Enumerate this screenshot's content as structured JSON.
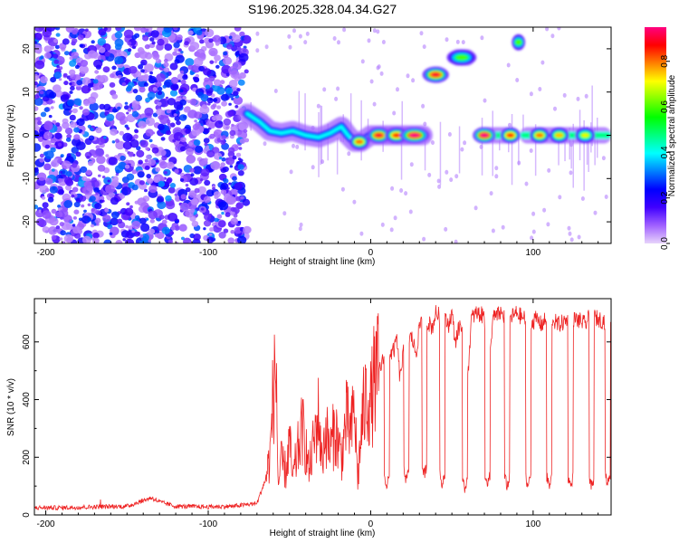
{
  "chart_data": [
    {
      "type": "heatmap",
      "title": "S196.2025.328.04.34.G27",
      "xlabel": "Height of straight line (km)",
      "ylabel": "Frequency (Hz)",
      "xlim": [
        -207,
        148
      ],
      "ylim": [
        -25,
        25
      ],
      "xticks": [
        -200,
        -100,
        0,
        100
      ],
      "yticks": [
        -20,
        -10,
        0,
        10,
        20
      ],
      "colorbar": {
        "label": "Normalized spectral amplitude",
        "range": [
          0.0,
          0.95
        ],
        "ticks": [
          0.0,
          0.2,
          0.4,
          0.6,
          0.8
        ],
        "tick_labels": [
          "0.0",
          "0.2",
          "0.4",
          "0.6",
          "0.8"
        ],
        "colors": [
          "#e8d4fb",
          "#a060ff",
          "#4000ff",
          "#0000ff",
          "#0080ff",
          "#00ffff",
          "#00ff80",
          "#00ff00",
          "#80ff00",
          "#ffff00",
          "#ff8000",
          "#ff0000",
          "#ff0080"
        ]
      },
      "noise_region": {
        "x_from": -207,
        "x_to": -76,
        "y_from": -25,
        "y_to": 25
      },
      "ridge": [
        {
          "x": -76,
          "y": 5
        },
        {
          "x": -68,
          "y": 3
        },
        {
          "x": -62,
          "y": 1
        },
        {
          "x": -55,
          "y": 0.5
        },
        {
          "x": -48,
          "y": 1
        },
        {
          "x": -40,
          "y": 0
        },
        {
          "x": -32,
          "y": -0.5
        },
        {
          "x": -25,
          "y": 0.5
        },
        {
          "x": -18,
          "y": 2
        },
        {
          "x": -14,
          "y": 0
        },
        {
          "x": -10,
          "y": -1.5
        },
        {
          "x": -6,
          "y": -1.5
        },
        {
          "x": 0,
          "y": 0
        },
        {
          "x": 10,
          "y": 0
        },
        {
          "x": 20,
          "y": 0
        },
        {
          "x": 32,
          "y": 0
        }
      ],
      "blobs": [
        {
          "x": 40,
          "y": 14,
          "w": 7,
          "amp": 0.9
        },
        {
          "x": 56,
          "y": 18,
          "w": 8,
          "amp": 0.6
        },
        {
          "x": 91,
          "y": 21.5,
          "w": 3,
          "amp": 0.6
        },
        {
          "x": 5,
          "y": 0,
          "w": 6,
          "amp": 0.9
        },
        {
          "x": 16,
          "y": 0,
          "w": 6,
          "amp": 0.85
        },
        {
          "x": 27,
          "y": 0,
          "w": 8,
          "amp": 0.95
        },
        {
          "x": -7,
          "y": -1.5,
          "w": 5,
          "amp": 0.8
        },
        {
          "x": 70,
          "y": 0,
          "w": 6,
          "amp": 0.95
        },
        {
          "x": 86,
          "y": 0,
          "w": 5,
          "amp": 0.85
        },
        {
          "x": 104,
          "y": 0,
          "w": 5,
          "amp": 0.8
        },
        {
          "x": 116,
          "y": 0,
          "w": 5,
          "amp": 0.75
        },
        {
          "x": 132,
          "y": 0,
          "w": 5,
          "amp": 0.7
        }
      ],
      "segments": [
        {
          "x_from": -2,
          "x_to": 33,
          "y": 0,
          "amp": 0.5
        },
        {
          "x_from": 64,
          "x_to": 89,
          "y": 0,
          "amp": 0.5
        },
        {
          "x_from": 92,
          "x_to": 148,
          "y": 0,
          "amp": 0.5
        },
        {
          "x_from": 35,
          "x_to": 46,
          "y": 14,
          "amp": 0.45
        },
        {
          "x_from": 49,
          "x_to": 64,
          "y": 18,
          "amp": 0.45
        }
      ]
    },
    {
      "type": "line",
      "xlabel": "Height of straight line (km)",
      "ylabel": "SNR (10 * v/v)",
      "xlim": [
        -207,
        148
      ],
      "ylim": [
        0,
        750
      ],
      "xticks": [
        -200,
        -100,
        0,
        100
      ],
      "yticks": [
        0,
        200,
        400,
        600
      ],
      "color": "#ee2222",
      "series": [
        {
          "name": "SNR",
          "x": [
            -207,
            -190,
            -170,
            -150,
            -140,
            -135,
            -130,
            -120,
            -100,
            -85,
            -70,
            -65,
            -62,
            -60,
            -58,
            -57,
            -55,
            -52,
            -50,
            -48,
            -45,
            -42,
            -40,
            -38,
            -35,
            -32,
            -30,
            -28,
            -25,
            -22,
            -20,
            -18,
            -15,
            -12,
            -10,
            -8,
            -5,
            -2,
            0,
            2,
            5,
            8,
            10,
            13,
            15,
            16,
            18,
            20,
            25,
            28,
            30,
            32,
            35,
            38,
            40,
            45,
            48,
            50,
            52,
            55,
            58,
            60,
            62,
            65,
            70,
            72,
            75,
            80,
            82,
            85,
            90,
            92,
            95,
            100,
            102,
            105,
            110,
            112,
            115,
            120,
            122,
            125,
            130,
            132,
            135,
            140,
            145,
            148
          ],
          "y": [
            25,
            25,
            28,
            30,
            50,
            60,
            45,
            30,
            28,
            30,
            40,
            120,
            200,
            420,
            500,
            100,
            180,
            150,
            260,
            120,
            220,
            300,
            240,
            150,
            250,
            350,
            180,
            300,
            220,
            300,
            250,
            200,
            330,
            280,
            380,
            120,
            340,
            420,
            380,
            460,
            500,
            540,
            560,
            560,
            580,
            620,
            470,
            560,
            620,
            560,
            650,
            700,
            670,
            650,
            700,
            680,
            660,
            700,
            600,
            660,
            620,
            500,
            680,
            700,
            690,
            400,
            680,
            700,
            690,
            680,
            700,
            690,
            680,
            670,
            680,
            660,
            690,
            680,
            660,
            670,
            690,
            680,
            670,
            660,
            690,
            680,
            670,
            665
          ]
        }
      ],
      "dips": [
        {
          "x": 10,
          "min": 80
        },
        {
          "x": 22,
          "min": 100
        },
        {
          "x": 33,
          "min": 120
        },
        {
          "x": 44,
          "min": 90
        },
        {
          "x": 58,
          "min": 70
        },
        {
          "x": 72,
          "min": 90
        },
        {
          "x": 84,
          "min": 80
        },
        {
          "x": 97,
          "min": 80
        },
        {
          "x": 110,
          "min": 80
        },
        {
          "x": 123,
          "min": 80
        },
        {
          "x": 136,
          "min": 80
        },
        {
          "x": 146,
          "min": 90
        }
      ]
    }
  ]
}
